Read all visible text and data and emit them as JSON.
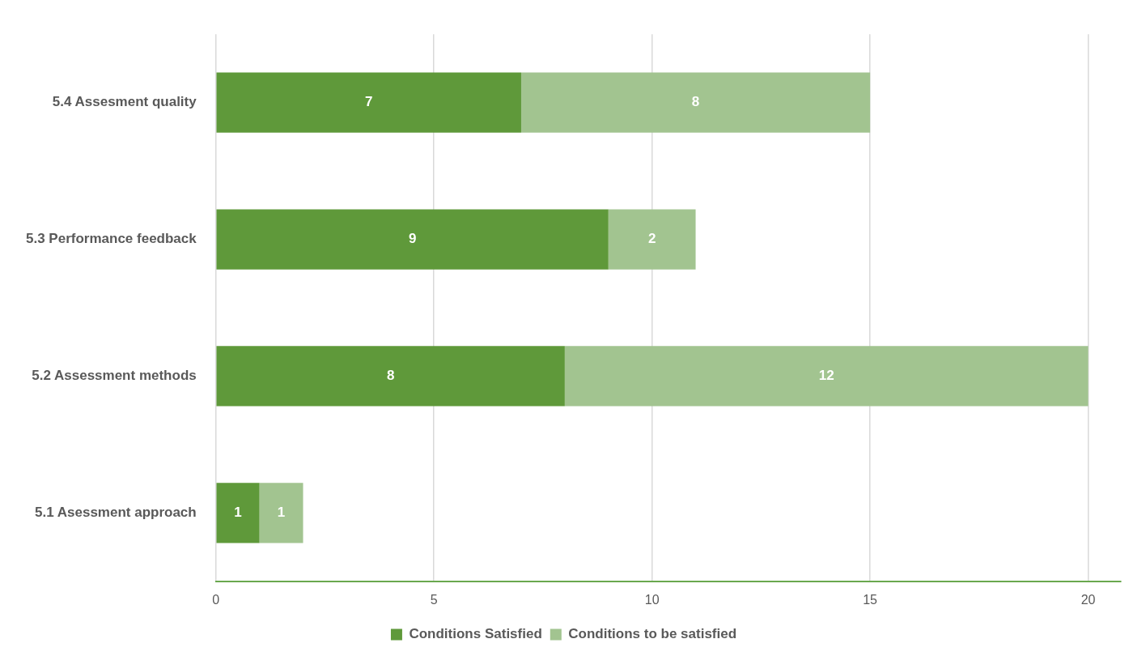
{
  "chart_data": {
    "type": "bar",
    "orientation": "horizontal",
    "stacked": true,
    "categories": [
      "5.4 Assesment quality",
      "5.3 Performance feedback",
      "5.2 Assessment methods",
      "5.1 Asessment approach"
    ],
    "series": [
      {
        "name": "Conditions Satisfied",
        "color": "#5f993a",
        "values": [
          7,
          9,
          8,
          1
        ]
      },
      {
        "name": "Conditions to be satisfied",
        "color": "#a2c490",
        "values": [
          8,
          2,
          12,
          1
        ]
      }
    ],
    "xlim": [
      0,
      20.75
    ],
    "xticks": [
      0,
      5,
      10,
      15,
      20
    ],
    "grid": "x",
    "legend": "bottom",
    "data_labels": true
  }
}
